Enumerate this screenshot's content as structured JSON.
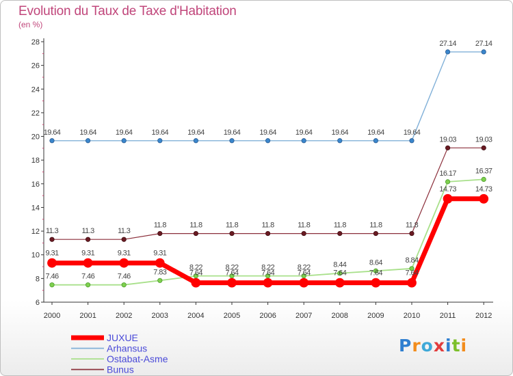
{
  "chart_data": {
    "type": "line",
    "title": "Evolution du Taux de Taxe d'Habitation",
    "unit_label": "(en %)",
    "xlabel": "",
    "ylabel": "(en %)",
    "categories": [
      "2000",
      "2001",
      "2002",
      "2003",
      "2004",
      "2005",
      "2006",
      "2007",
      "2008",
      "2009",
      "2010",
      "2011",
      "2012"
    ],
    "y_ticks": [
      "6",
      "8",
      "10",
      "12",
      "14",
      "16",
      "18",
      "20",
      "22",
      "24",
      "26",
      "28"
    ],
    "ylim": [
      6,
      28
    ],
    "grid": false,
    "legend_position": "bottom-left",
    "series": [
      {
        "name": "JUXUE",
        "color": "#ff0000",
        "values": [
          9.31,
          9.31,
          9.31,
          9.31,
          7.64,
          7.64,
          7.64,
          7.64,
          7.64,
          7.64,
          7.64,
          14.73,
          14.73
        ],
        "labels": [
          "9.31",
          "9.31",
          "9.31",
          "9.31",
          "7.64",
          "7.64",
          "7.64",
          "7.64",
          "7.64",
          "7.64",
          "7.64",
          "14.73",
          "14.73"
        ]
      },
      {
        "name": "Arhansus",
        "color": "#80b0d8",
        "values": [
          19.64,
          19.64,
          19.64,
          19.64,
          19.64,
          19.64,
          19.64,
          19.64,
          19.64,
          19.64,
          19.64,
          27.14,
          27.14
        ],
        "labels": [
          "19.64",
          "19.64",
          "19.64",
          "19.64",
          "19.64",
          "19.64",
          "19.64",
          "19.64",
          "19.64",
          "19.64",
          "19.64",
          "27.14",
          "27.14"
        ]
      },
      {
        "name": "Ostabat-Asme",
        "color": "#a8e08a",
        "values": [
          7.46,
          7.46,
          7.46,
          7.83,
          8.22,
          8.22,
          8.22,
          8.22,
          8.44,
          8.64,
          8.84,
          16.17,
          16.37
        ],
        "labels": [
          "7.46",
          "7.46",
          "7.46",
          "7.83",
          "8.22",
          "8.22",
          "8.22",
          "8.22",
          "8.44",
          "8.64",
          "8.84",
          "16.17",
          "16.37"
        ]
      },
      {
        "name": "Bunus",
        "color": "#8b2e3a",
        "values": [
          11.3,
          11.3,
          11.3,
          11.8,
          11.8,
          11.8,
          11.8,
          11.8,
          11.8,
          11.8,
          11.8,
          19.03,
          19.03
        ],
        "labels": [
          "11.3",
          "11.3",
          "11.3",
          "11.8",
          "11.8",
          "11.8",
          "11.8",
          "11.8",
          "11.8",
          "11.8",
          "11.8",
          "19.03",
          "19.03"
        ]
      }
    ]
  },
  "branding": {
    "letters": [
      "P",
      "r",
      "o",
      "x",
      "i",
      "t",
      "i"
    ]
  }
}
